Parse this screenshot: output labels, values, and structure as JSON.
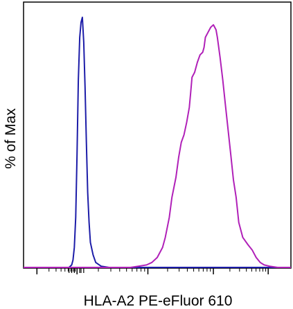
{
  "chart_data": {
    "type": "line",
    "title": "",
    "xlabel": "HLA-A2 PE-eFluor 610",
    "ylabel": "% of Max",
    "x_scale": "log",
    "grid": false,
    "legend": "none",
    "ylim": [
      0,
      100
    ],
    "colors": {
      "control": "#1c1ca8",
      "stained": "#b020b8",
      "frame": "#000000"
    },
    "series": [
      {
        "id": "control",
        "points": [
          [
            0.0,
            0
          ],
          [
            0.17,
            0
          ],
          [
            0.18,
            1
          ],
          [
            0.185,
            3
          ],
          [
            0.19,
            8
          ],
          [
            0.195,
            20
          ],
          [
            0.2,
            45
          ],
          [
            0.205,
            75
          ],
          [
            0.21,
            92
          ],
          [
            0.215,
            98
          ],
          [
            0.22,
            100
          ],
          [
            0.225,
            90
          ],
          [
            0.23,
            72
          ],
          [
            0.235,
            50
          ],
          [
            0.24,
            30
          ],
          [
            0.245,
            18
          ],
          [
            0.25,
            10
          ],
          [
            0.26,
            5
          ],
          [
            0.27,
            2
          ],
          [
            0.29,
            0.5
          ],
          [
            0.32,
            0
          ],
          [
            1.0,
            0
          ]
        ]
      },
      {
        "id": "stained",
        "points": [
          [
            0.0,
            0
          ],
          [
            0.4,
            0
          ],
          [
            0.43,
            0.5
          ],
          [
            0.46,
            1
          ],
          [
            0.48,
            2
          ],
          [
            0.5,
            4
          ],
          [
            0.52,
            8
          ],
          [
            0.53,
            12
          ],
          [
            0.545,
            20
          ],
          [
            0.555,
            28
          ],
          [
            0.57,
            36
          ],
          [
            0.58,
            44
          ],
          [
            0.59,
            50
          ],
          [
            0.6,
            53
          ],
          [
            0.61,
            58
          ],
          [
            0.62,
            64
          ],
          [
            0.625,
            70
          ],
          [
            0.63,
            76
          ],
          [
            0.64,
            78
          ],
          [
            0.65,
            82
          ],
          [
            0.66,
            85
          ],
          [
            0.67,
            86
          ],
          [
            0.675,
            88
          ],
          [
            0.68,
            92
          ],
          [
            0.69,
            94
          ],
          [
            0.7,
            96
          ],
          [
            0.71,
            97
          ],
          [
            0.715,
            96
          ],
          [
            0.72,
            95
          ],
          [
            0.725,
            92
          ],
          [
            0.735,
            84
          ],
          [
            0.745,
            75
          ],
          [
            0.755,
            65
          ],
          [
            0.765,
            55
          ],
          [
            0.775,
            45
          ],
          [
            0.785,
            35
          ],
          [
            0.795,
            28
          ],
          [
            0.805,
            18
          ],
          [
            0.82,
            12
          ],
          [
            0.84,
            9
          ],
          [
            0.855,
            7
          ],
          [
            0.87,
            4
          ],
          [
            0.885,
            2
          ],
          [
            0.9,
            1
          ],
          [
            0.92,
            0.5
          ],
          [
            0.95,
            0
          ],
          [
            1.0,
            0
          ]
        ]
      }
    ]
  }
}
